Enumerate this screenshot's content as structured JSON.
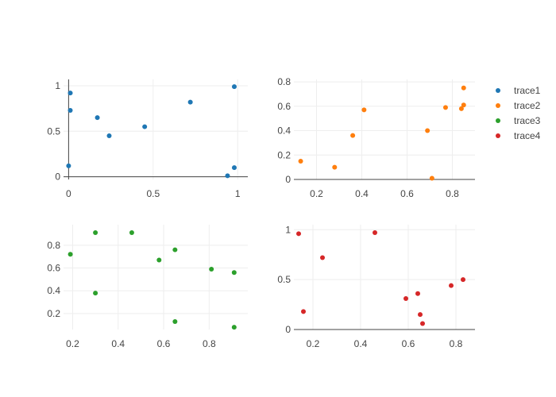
{
  "chart_data": [
    {
      "type": "scatter",
      "series": [
        {
          "name": "trace1",
          "color": "#1f77b4",
          "x": [
            0.0,
            0.01,
            0.01,
            0.17,
            0.24,
            0.45,
            0.72,
            0.98,
            0.98,
            0.94
          ],
          "y": [
            0.12,
            0.92,
            0.73,
            0.65,
            0.45,
            0.55,
            0.82,
            0.99,
            0.1,
            0.01
          ]
        }
      ],
      "xlim": [
        -0.03,
        1.06
      ],
      "ylim": [
        -0.03,
        1.07
      ],
      "xticks": [
        {
          "v": 0,
          "label": "0"
        },
        {
          "v": 0.5,
          "label": "0.5"
        },
        {
          "v": 1,
          "label": "1"
        }
      ],
      "yticks": [
        {
          "v": 0,
          "label": "0"
        },
        {
          "v": 0.5,
          "label": "0.5"
        },
        {
          "v": 1,
          "label": "1"
        }
      ],
      "zeroline_x": true,
      "zeroline_y": true,
      "grid": true
    },
    {
      "type": "scatter",
      "series": [
        {
          "name": "trace2",
          "color": "#ff7f0e",
          "x": [
            0.13,
            0.28,
            0.36,
            0.41,
            0.69,
            0.71,
            0.77,
            0.84,
            0.85,
            0.85
          ],
          "y": [
            0.15,
            0.1,
            0.36,
            0.57,
            0.4,
            0.01,
            0.59,
            0.58,
            0.75,
            0.61
          ]
        }
      ],
      "xlim": [
        0.1,
        0.9
      ],
      "ylim": [
        0,
        0.82
      ],
      "xticks": [
        {
          "v": 0.2,
          "label": "0.2"
        },
        {
          "v": 0.4,
          "label": "0.4"
        },
        {
          "v": 0.6,
          "label": "0.6"
        },
        {
          "v": 0.8,
          "label": "0.8"
        }
      ],
      "yticks": [
        {
          "v": 0,
          "label": "0"
        },
        {
          "v": 0.2,
          "label": "0.2"
        },
        {
          "v": 0.4,
          "label": "0.4"
        },
        {
          "v": 0.6,
          "label": "0.6"
        },
        {
          "v": 0.8,
          "label": "0.8"
        }
      ],
      "zeroline_x": false,
      "zeroline_y": true,
      "grid": true
    },
    {
      "type": "scatter",
      "series": [
        {
          "name": "trace3",
          "color": "#2ca02c",
          "x": [
            0.19,
            0.3,
            0.3,
            0.46,
            0.58,
            0.65,
            0.65,
            0.81,
            0.91,
            0.91
          ],
          "y": [
            0.72,
            0.91,
            0.38,
            0.91,
            0.67,
            0.13,
            0.76,
            0.59,
            0.56,
            0.08
          ]
        }
      ],
      "xlim": [
        0.16,
        0.97
      ],
      "ylim": [
        0.06,
        0.98
      ],
      "xticks": [
        {
          "v": 0.2,
          "label": "0.2"
        },
        {
          "v": 0.4,
          "label": "0.4"
        },
        {
          "v": 0.6,
          "label": "0.6"
        },
        {
          "v": 0.8,
          "label": "0.8"
        }
      ],
      "yticks": [
        {
          "v": 0.2,
          "label": "0.2"
        },
        {
          "v": 0.4,
          "label": "0.4"
        },
        {
          "v": 0.6,
          "label": "0.6"
        },
        {
          "v": 0.8,
          "label": "0.8"
        }
      ],
      "zeroline_x": false,
      "zeroline_y": false,
      "grid": true
    },
    {
      "type": "scatter",
      "series": [
        {
          "name": "trace4",
          "color": "#d62728",
          "x": [
            0.14,
            0.16,
            0.24,
            0.46,
            0.59,
            0.64,
            0.65,
            0.66,
            0.78,
            0.83
          ],
          "y": [
            0.96,
            0.18,
            0.72,
            0.97,
            0.31,
            0.36,
            0.15,
            0.06,
            0.44,
            0.5
          ]
        }
      ],
      "xlim": [
        0.12,
        0.88
      ],
      "ylim": [
        0,
        1.05
      ],
      "xticks": [
        {
          "v": 0.2,
          "label": "0.2"
        },
        {
          "v": 0.4,
          "label": "0.4"
        },
        {
          "v": 0.6,
          "label": "0.6"
        },
        {
          "v": 0.8,
          "label": "0.8"
        }
      ],
      "yticks": [
        {
          "v": 0,
          "label": "0"
        },
        {
          "v": 0.5,
          "label": "0.5"
        },
        {
          "v": 1,
          "label": "1"
        }
      ],
      "zeroline_x": false,
      "zeroline_y": true,
      "grid": true
    }
  ],
  "legend": {
    "placement": "right",
    "items": [
      {
        "name": "trace1",
        "color": "#1f77b4"
      },
      {
        "name": "trace2",
        "color": "#ff7f0e"
      },
      {
        "name": "trace3",
        "color": "#2ca02c"
      },
      {
        "name": "trace4",
        "color": "#d62728"
      }
    ]
  }
}
